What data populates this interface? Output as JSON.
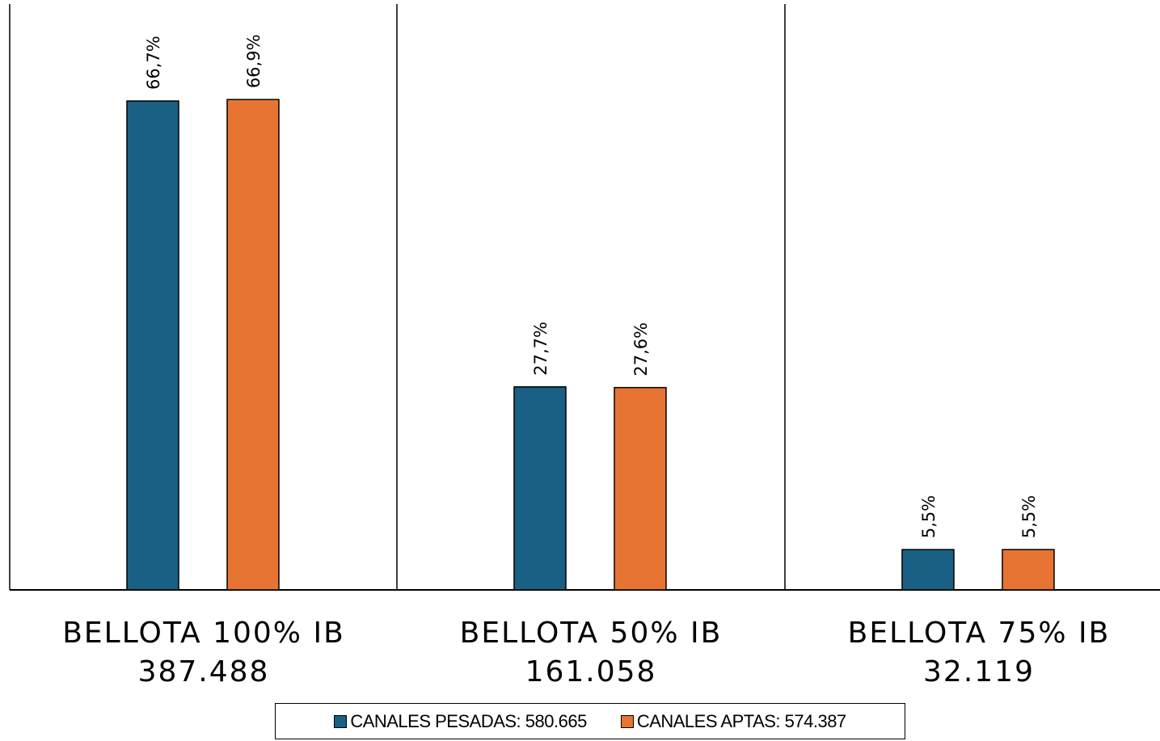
{
  "chart_data": {
    "type": "bar",
    "categories": [
      "BELLOTA 100% IB",
      "BELLOTA 50% IB",
      "BELLOTA 75% IB"
    ],
    "category_totals": [
      "387.488",
      "161.058",
      "32.119"
    ],
    "series": [
      {
        "name": "CANALES PESADAS: 580.665",
        "values": [
          66.7,
          27.7,
          5.5
        ],
        "labels": [
          "66,7%",
          "27,7%",
          "5,5%"
        ],
        "color": "#1a6085"
      },
      {
        "name": "CANALES APTAS: 574.387",
        "values": [
          66.9,
          27.6,
          5.5
        ],
        "labels": [
          "66,9%",
          "27,6%",
          "5,5%"
        ],
        "color": "#e87434"
      }
    ],
    "ylim": [
      0,
      80
    ],
    "grid": false,
    "legend_position": "bottom"
  }
}
